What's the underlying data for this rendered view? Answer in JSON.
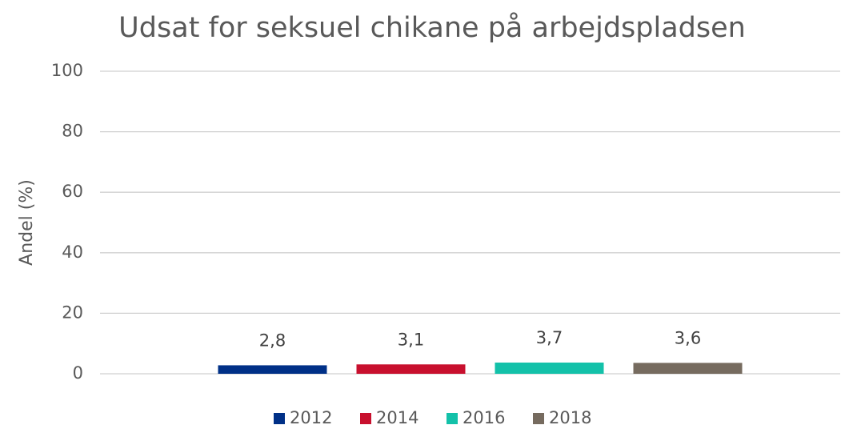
{
  "chart_data": {
    "type": "bar",
    "title": "Udsat for seksuel chikane på arbejdspladsen",
    "y_label": "Andel (%)",
    "categories": [
      null
    ],
    "series": [
      {
        "name": "2012",
        "color": "#003087",
        "values": [
          2.8
        ],
        "value_labels": [
          "2,8"
        ]
      },
      {
        "name": "2014",
        "color": "#c8102e",
        "values": [
          3.1
        ],
        "value_labels": [
          "3,1"
        ]
      },
      {
        "name": "2016",
        "color": "#13c1a9",
        "values": [
          3.7
        ],
        "value_labels": [
          "3,7"
        ]
      },
      {
        "name": "2018",
        "color": "#766b5f",
        "values": [
          3.6
        ],
        "value_labels": [
          "3,6"
        ]
      }
    ],
    "ylim": [
      0,
      100
    ],
    "yticks": [
      0,
      20,
      40,
      60,
      80,
      100
    ],
    "grid": true,
    "legend": "bottom"
  }
}
